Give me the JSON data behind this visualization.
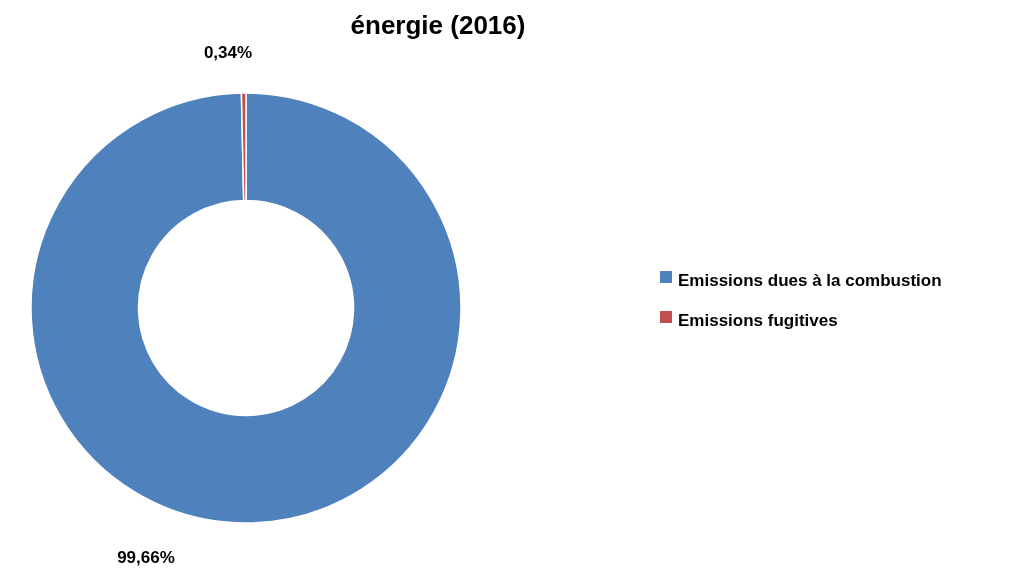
{
  "chart_data": {
    "type": "donut",
    "title": "énergie (2016)",
    "categories": [
      "Emissions dues à la combustion",
      "Emissions fugitives"
    ],
    "values": [
      99.66,
      0.34
    ],
    "colors": [
      "#4f81bd",
      "#c0504d"
    ],
    "value_labels": [
      "99,66%",
      "0,34%"
    ],
    "legend": "right"
  }
}
